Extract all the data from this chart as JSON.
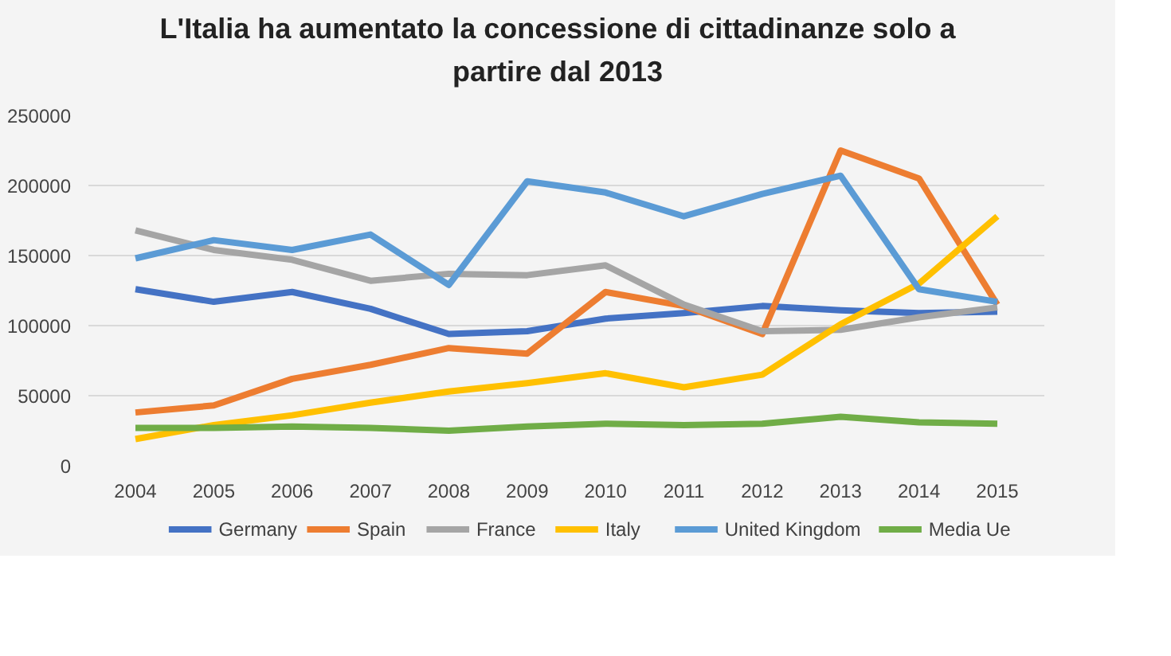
{
  "chart_data": {
    "type": "line",
    "title": "L'Italia ha aumentato la concessione di cittadinanze solo a\npartire dal 2013",
    "categories": [
      "2004",
      "2005",
      "2006",
      "2007",
      "2008",
      "2009",
      "2010",
      "2011",
      "2012",
      "2013",
      "2014",
      "2015"
    ],
    "series": [
      {
        "name": "Germany",
        "color": "#4472c4",
        "values": [
          126000,
          117000,
          124000,
          112000,
          94000,
          96000,
          105000,
          109000,
          114000,
          111000,
          109000,
          110000
        ]
      },
      {
        "name": "Spain",
        "color": "#ed7d31",
        "values": [
          38000,
          43000,
          62000,
          72000,
          84000,
          80000,
          124000,
          114000,
          94000,
          225000,
          205000,
          115000
        ]
      },
      {
        "name": "France",
        "color": "#a5a5a5",
        "values": [
          168000,
          154000,
          147000,
          132000,
          137000,
          136000,
          143000,
          115000,
          96000,
          97000,
          106000,
          113000
        ]
      },
      {
        "name": "Italy",
        "color": "#ffc000",
        "values": [
          19000,
          29000,
          36000,
          45000,
          53000,
          59000,
          66000,
          56000,
          65000,
          101000,
          130000,
          178000
        ]
      },
      {
        "name": "United Kingdom",
        "color": "#5b9bd5",
        "values": [
          148000,
          161000,
          154000,
          165000,
          129000,
          203000,
          195000,
          178000,
          194000,
          207000,
          126000,
          117000
        ]
      },
      {
        "name": "Media Ue",
        "color": "#70ad47",
        "values": [
          27000,
          27000,
          28000,
          27000,
          25000,
          28000,
          30000,
          29000,
          30000,
          35000,
          31000,
          30000
        ]
      }
    ],
    "ylim": [
      0,
      250000
    ],
    "yticks": [
      0,
      50000,
      100000,
      150000,
      200000,
      250000
    ],
    "grid": "y",
    "legend": "bottom",
    "marker": "none",
    "line_style": "solid"
  }
}
